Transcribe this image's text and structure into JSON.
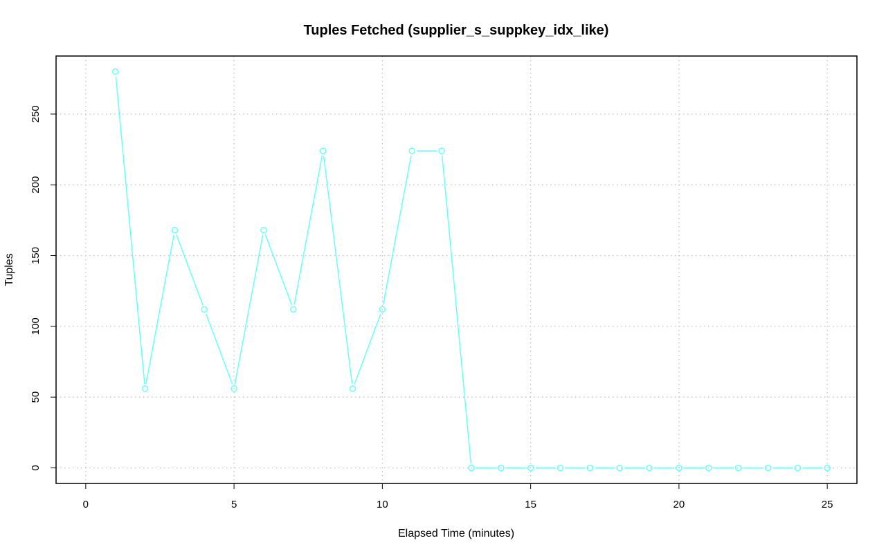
{
  "chart_data": {
    "type": "line",
    "title": "Tuples Fetched (supplier_s_suppkey_idx_like)",
    "xlabel": "Elapsed Time (minutes)",
    "ylabel": "Tuples",
    "xlim": [
      -1,
      26
    ],
    "ylim": [
      -11,
      291
    ],
    "x_ticks": [
      0,
      5,
      10,
      15,
      20,
      25
    ],
    "y_ticks": [
      0,
      50,
      100,
      150,
      200,
      250
    ],
    "grid": true,
    "legend": "none",
    "series": [
      {
        "color": "#66ffff",
        "marker": "open-circle",
        "x": [
          1,
          2,
          3,
          4,
          5,
          6,
          7,
          8,
          9,
          10,
          11,
          12,
          13,
          14,
          15,
          16,
          17,
          18,
          19,
          20,
          21,
          22,
          23,
          24,
          25
        ],
        "values": [
          280,
          56,
          168,
          112,
          56,
          168,
          112,
          224,
          56,
          112,
          224,
          224,
          0,
          0,
          0,
          0,
          0,
          0,
          0,
          0,
          0,
          0,
          0,
          0,
          0
        ]
      }
    ]
  }
}
